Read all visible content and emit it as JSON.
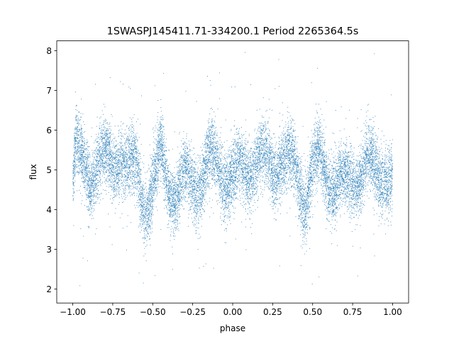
{
  "chart_data": {
    "type": "scatter",
    "title": "1SWASPJ145411.71-334200.1 Period 2265364.5s",
    "xlabel": "phase",
    "ylabel": "flux",
    "xlim": [
      -1.1,
      1.1
    ],
    "ylim": [
      1.65,
      8.25
    ],
    "xticks": [
      -1.0,
      -0.75,
      -0.5,
      -0.25,
      0.0,
      0.25,
      0.5,
      0.75,
      1.0
    ],
    "xtick_labels": [
      "−1.00",
      "−0.75",
      "−0.50",
      "−0.25",
      "0.00",
      "0.25",
      "0.50",
      "0.75",
      "1.00"
    ],
    "yticks": [
      2,
      3,
      4,
      5,
      6,
      7,
      8
    ],
    "ytick_labels": [
      "2",
      "3",
      "4",
      "5",
      "6",
      "7",
      "8"
    ],
    "grid": false,
    "legend": "none",
    "marker_color": "#1f77b4",
    "series": [
      {
        "description": "phase-folded light curve, dense band of ~20000 points",
        "x_range": [
          -1.0,
          1.0
        ],
        "core_flux_range": [
          3.6,
          6.2
        ],
        "median_flux": 5.0,
        "outlier_flux_range": [
          1.9,
          8.0
        ],
        "values": [
          [
            -1.0,
            4.6
          ],
          [
            -0.98,
            5.6
          ],
          [
            -0.95,
            5.1
          ],
          [
            -0.9,
            4.8
          ],
          [
            -0.85,
            5.3
          ],
          [
            -0.8,
            5.2
          ],
          [
            -0.75,
            5.0
          ],
          [
            -0.7,
            5.5
          ],
          [
            -0.65,
            5.0
          ],
          [
            -0.6,
            4.9
          ],
          [
            -0.55,
            4.1
          ],
          [
            -0.5,
            4.6
          ],
          [
            -0.45,
            5.3
          ],
          [
            -0.4,
            4.6
          ],
          [
            -0.35,
            4.5
          ],
          [
            -0.3,
            4.7
          ],
          [
            -0.25,
            4.6
          ],
          [
            -0.2,
            4.8
          ],
          [
            -0.15,
            5.2
          ],
          [
            -0.1,
            5.1
          ],
          [
            -0.05,
            4.9
          ],
          [
            0.0,
            4.8
          ],
          [
            0.05,
            4.9
          ],
          [
            0.1,
            5.1
          ],
          [
            0.15,
            5.3
          ],
          [
            0.2,
            5.1
          ],
          [
            0.25,
            5.0
          ],
          [
            0.3,
            5.4
          ],
          [
            0.35,
            5.2
          ],
          [
            0.4,
            4.9
          ],
          [
            0.45,
            4.3
          ],
          [
            0.5,
            5.0
          ],
          [
            0.55,
            5.2
          ],
          [
            0.6,
            4.8
          ],
          [
            0.65,
            4.7
          ],
          [
            0.7,
            4.6
          ],
          [
            0.75,
            4.8
          ],
          [
            0.8,
            5.0
          ],
          [
            0.85,
            5.1
          ],
          [
            0.9,
            4.9
          ],
          [
            0.95,
            5.0
          ],
          [
            1.0,
            4.6
          ]
        ]
      }
    ]
  }
}
